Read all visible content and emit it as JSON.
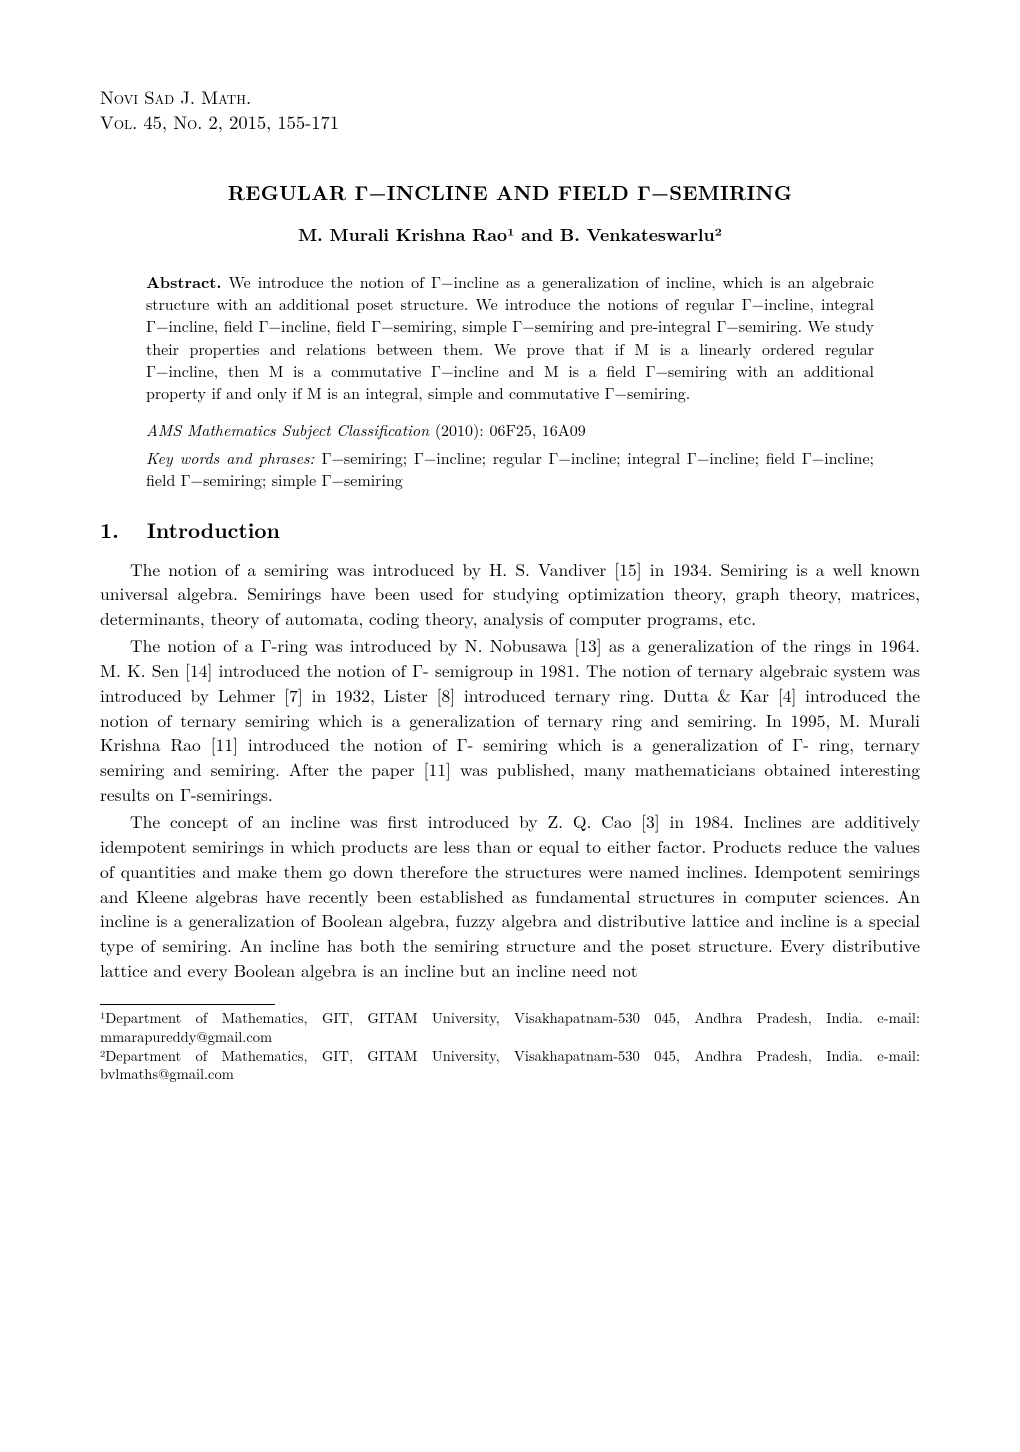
{
  "journal": {
    "line1": "Novi Sad J. Math.",
    "line2": "Vol. 45, No. 2, 2015, 155-171"
  },
  "title": "REGULAR Γ−INCLINE AND FIELD Γ−SEMIRING",
  "authors": "M. Murali Krishna Rao¹ and B. Venkateswarlu²",
  "abstract": {
    "label": "Abstract.",
    "text": "We introduce the notion of Γ−incline as a generalization of incline, which is an algebraic structure with an additional poset structure. We introduce the notions of regular Γ−incline, integral Γ−incline, field Γ−incline, field Γ−semiring, simple Γ−semiring and pre-integral Γ−semiring. We study their properties and relations between them. We prove that if M is a linearly ordered regular Γ−incline, then M is a commutative Γ−incline and M is a field Γ−semiring with an additional property if and only if M is an integral, simple and commutative Γ−semiring."
  },
  "ams": {
    "label": "AMS Mathematics Subject Classification",
    "year": "(2010):",
    "codes": "06F25, 16A09"
  },
  "keywords": {
    "label": "Key words and phrases:",
    "text": "Γ−semiring; Γ−incline; regular Γ−incline; integral Γ−incline; field Γ−incline; field Γ−semiring; simple Γ−semiring"
  },
  "section": {
    "number": "1.",
    "title": "Introduction"
  },
  "body": {
    "p1": "The notion of a semiring was introduced by H. S. Vandiver [15] in 1934. Semiring is a well known universal algebra. Semirings have been used for studying optimization theory, graph theory, matrices, determinants, theory of automata, coding theory, analysis of computer programs, etc.",
    "p2": "The notion of a Γ-ring was introduced by N. Nobusawa [13] as a generalization of the rings in 1964. M. K. Sen [14] introduced the notion of Γ- semigroup in 1981. The notion of ternary algebraic system was introduced by Lehmer [7] in 1932, Lister [8] introduced ternary ring. Dutta & Kar [4] introduced the notion of ternary semiring which is a generalization of ternary ring and semiring. In 1995, M. Murali Krishna Rao [11] introduced the notion of Γ- semiring which is a generalization of Γ- ring, ternary semiring and semiring. After the paper [11] was published, many mathematicians obtained interesting results on Γ-semirings.",
    "p3": "The concept of an incline was first introduced by Z. Q. Cao [3] in 1984. Inclines are additively idempotent semirings in which products are less than or equal to either factor. Products reduce the values of quantities and make them go down therefore the structures were named inclines. Idempotent semirings and Kleene algebras have recently been established as fundamental structures in computer sciences. An incline is a generalization of Boolean algebra, fuzzy algebra and distributive lattice and incline is a special type of semiring. An incline has both the semiring structure and the poset structure. Every distributive lattice and every Boolean algebra is an incline but an incline need not"
  },
  "footnotes": {
    "f1": "¹Department of Mathematics, GIT, GITAM University, Visakhapatnam-530 045, Andhra Pradesh, India.  e-mail: mmarapureddy@gmail.com",
    "f2": "²Department of Mathematics, GIT, GITAM University, Visakhapatnam-530 045, Andhra Pradesh, India.  e-mail: bvlmaths@gmail.com"
  },
  "colors": {
    "text": "#000000",
    "background": "#ffffff"
  },
  "typography": {
    "body_fontsize_pt": 11,
    "title_fontsize_pt": 12,
    "abstract_fontsize_pt": 10,
    "footnote_fontsize_pt": 9,
    "font_family": "Computer Modern / Latin Modern"
  }
}
